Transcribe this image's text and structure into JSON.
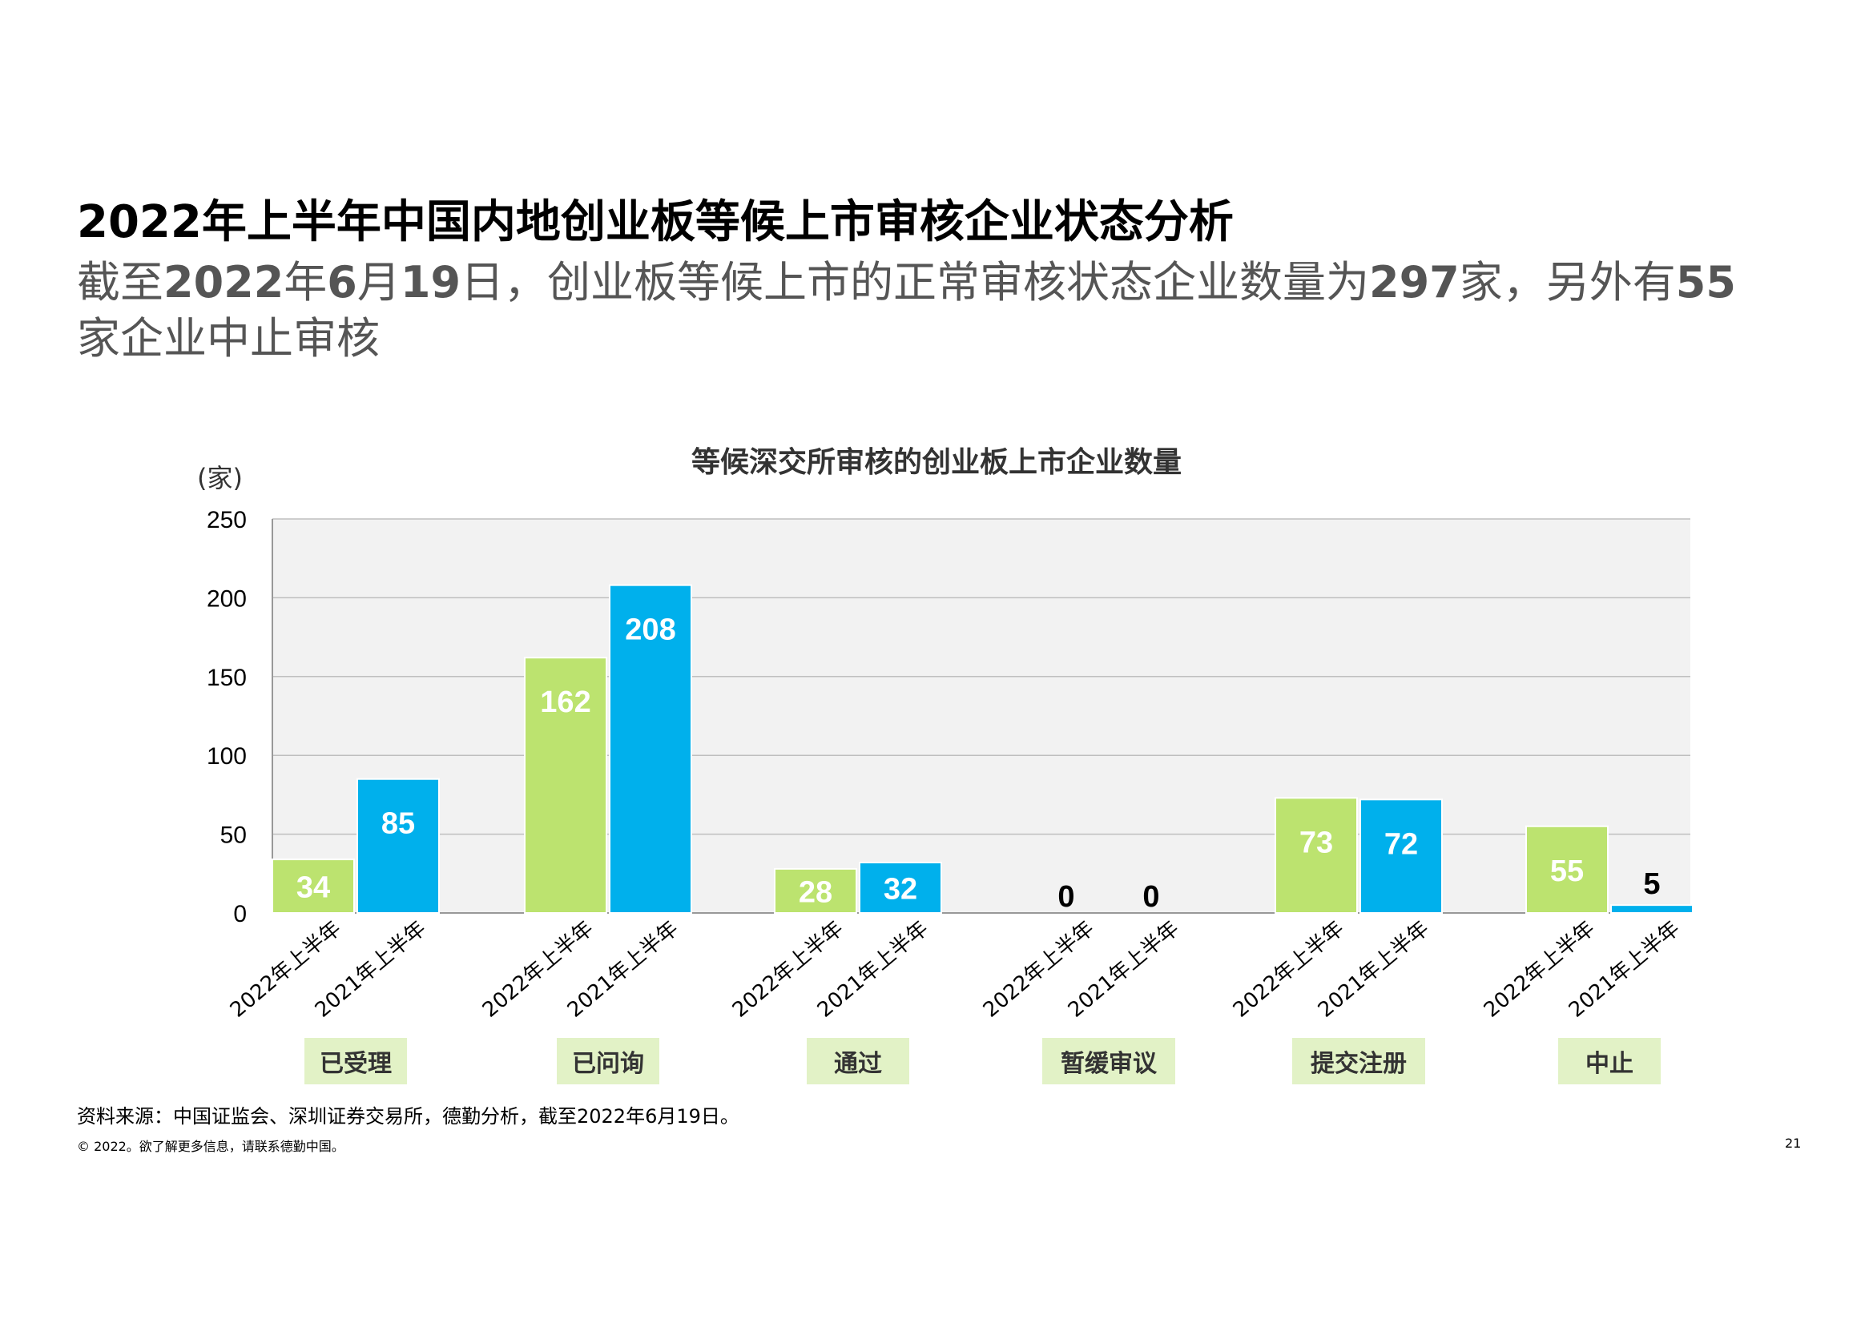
{
  "page": {
    "title": "2022年上半年中国内地创业板等候上市审核企业状态分析",
    "subtitle_parts": [
      "截至",
      "2022",
      "年",
      "6",
      "月",
      "19",
      "日，创业板等候上市的正常审核状态企业数量为",
      "297",
      "家，另外有",
      "55",
      "家企业中止审核"
    ],
    "source": "资料来源：中国证监会、深圳证券交易所，德勤分析，截至2022年6月19日。",
    "copyright": "© 2022。欲了解更多信息，请联系德勤中国。",
    "page_number": "21"
  },
  "chart_data": {
    "type": "bar",
    "title": "等候深交所审核的创业板上市企业数量",
    "ylabel": "(家)",
    "ylim": [
      0,
      250
    ],
    "yticks": [
      "0",
      "50",
      "100",
      "150",
      "200",
      "250"
    ],
    "categories": [
      "已受理",
      "已问询",
      "通过",
      "暂缓审议",
      "提交注册",
      "中止"
    ],
    "bar_labels": [
      "2022年上半年",
      "2021年上半年"
    ],
    "series": [
      {
        "name": "2022年上半年",
        "color": "#bce36f",
        "values": [
          34,
          162,
          28,
          0,
          73,
          55
        ]
      },
      {
        "name": "2021年上半年",
        "color": "#00b0ec",
        "values": [
          85,
          208,
          32,
          0,
          72,
          5
        ]
      }
    ],
    "grid": true,
    "legend": "none"
  }
}
